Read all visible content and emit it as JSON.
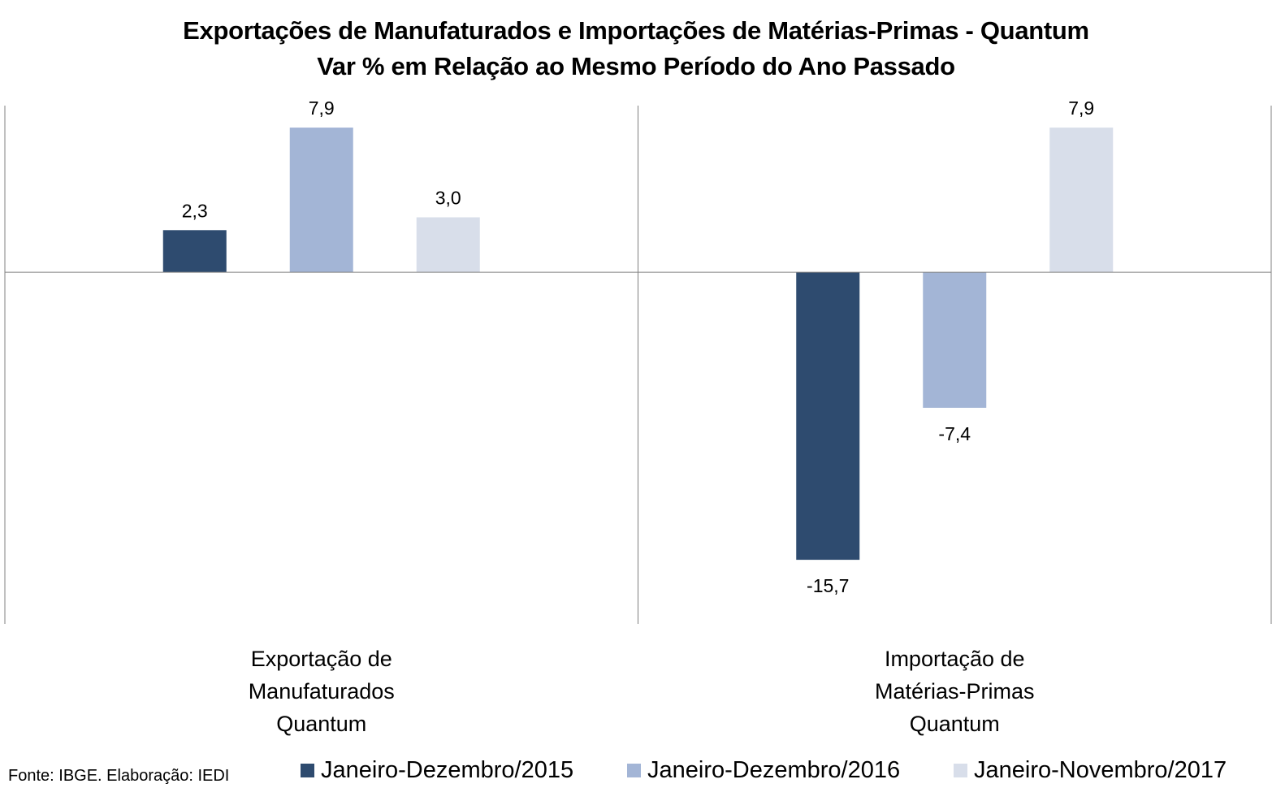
{
  "title_line1": "Exportações de Manufaturados e Importações de Matérias-Primas - Quantum",
  "title_line2": "Var % em Relação ao Mesmo Período do Ano Passado",
  "source": "Fonte: IBGE. Elaboração: IEDI",
  "colors": {
    "series_2015": "#2E4B6F",
    "series_2016": "#A3B5D6",
    "series_2017": "#D8DEEA",
    "axis": "#808080"
  },
  "chart_data": {
    "type": "bar",
    "title": "Exportações de Manufaturados e Importações de Matérias-Primas - Quantum",
    "subtitle": "Var % em Relação ao Mesmo Período do Ano Passado",
    "categories": [
      [
        "Exportação de",
        "Manufaturados",
        "Quantum"
      ],
      [
        "Importação de",
        "Matérias-Primas",
        "Quantum"
      ]
    ],
    "series": [
      {
        "name": "Janeiro-Dezembro/2015",
        "values": [
          2.3,
          -15.7
        ],
        "labels": [
          "2,3",
          "-15,7"
        ]
      },
      {
        "name": "Janeiro-Dezembro/2016",
        "values": [
          7.9,
          -7.4
        ],
        "labels": [
          "7,9",
          "-7,4"
        ]
      },
      {
        "name": "Janeiro-Novembro/2017",
        "values": [
          3.0,
          7.9
        ],
        "labels": [
          "3,0",
          "7,9"
        ]
      }
    ],
    "ylim": [
      -19.2,
      9.1
    ],
    "grid": false,
    "legend": "bottom"
  }
}
